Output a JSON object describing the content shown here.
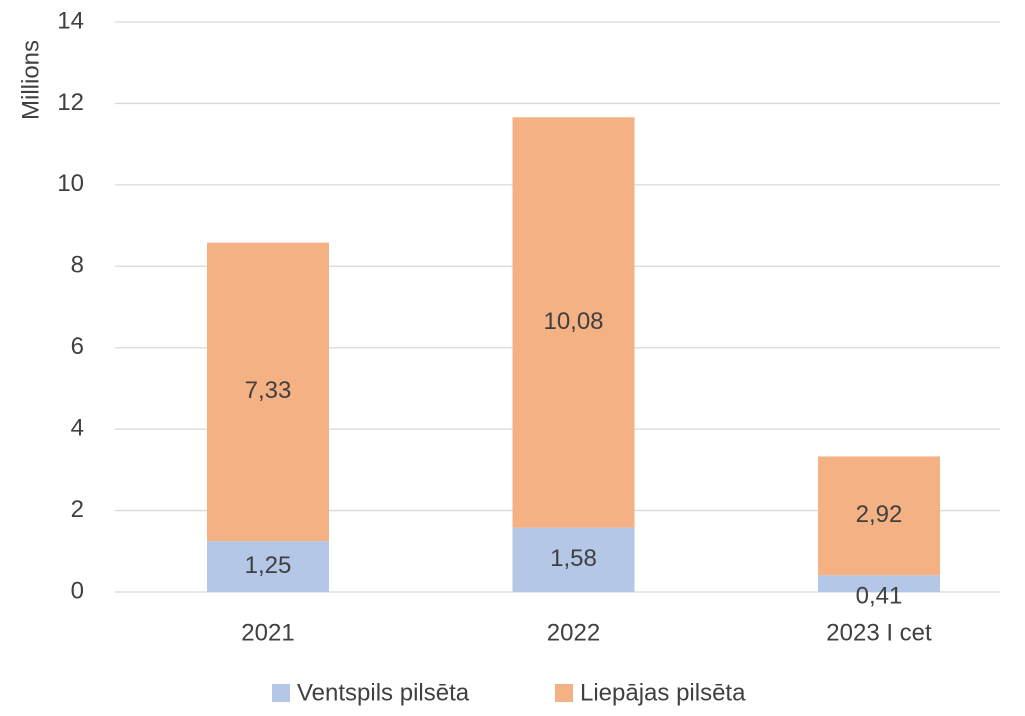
{
  "chart_data": {
    "type": "bar",
    "stacked": true,
    "y_label": "Millions",
    "categories": [
      "2021",
      "2022",
      "2023 I cet"
    ],
    "series": [
      {
        "name": "Ventspils pilsēta",
        "color": "#b4c7e7",
        "values": [
          1.25,
          1.58,
          0.41
        ],
        "value_labels": [
          "1,25",
          "1,58",
          "0,41"
        ]
      },
      {
        "name": "Liepājas pilsēta",
        "color": "#f4b183",
        "values": [
          7.33,
          10.08,
          2.92
        ],
        "value_labels": [
          "7,33",
          "10,08",
          "2,92"
        ]
      }
    ],
    "ylim": [
      0,
      14
    ],
    "yticks": [
      0,
      2,
      4,
      6,
      8,
      10,
      12,
      14
    ],
    "grid": true,
    "legend": "bottom"
  }
}
